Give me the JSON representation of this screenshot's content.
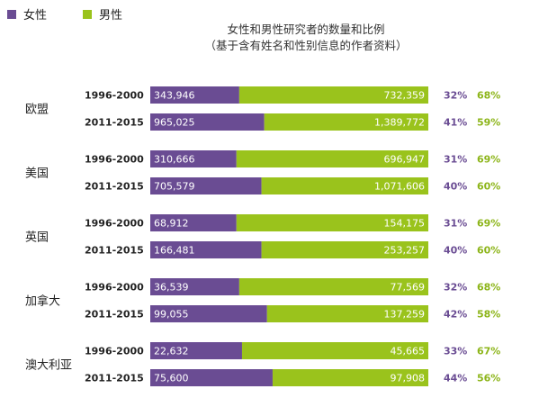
{
  "legend": [
    {
      "name": "女性",
      "color": "#6a4c93"
    },
    {
      "name": "男性",
      "color": "#9ac31c"
    }
  ],
  "chart_data": {
    "type": "bar",
    "orientation": "horizontal",
    "stacked": true,
    "normalized": true,
    "title": "女性和男性研究者的数量和比例",
    "subtitle": "（基于含有姓名和性别信息的作者资料）",
    "groups": [
      "欧盟",
      "美国",
      "英国",
      "加拿大",
      "澳大利亚"
    ],
    "periods": [
      "1996-2000",
      "2011-2015"
    ],
    "series": [
      {
        "name": "女性",
        "color": "#6a4c93"
      },
      {
        "name": "男性",
        "color": "#9ac31c"
      }
    ],
    "rows": [
      {
        "group": "欧盟",
        "period": "1996-2000",
        "female": "343,946",
        "male": "732,359",
        "female_pct": 32,
        "male_pct": 68
      },
      {
        "group": "欧盟",
        "period": "2011-2015",
        "female": "965,025",
        "male": "1,389,772",
        "female_pct": 41,
        "male_pct": 59
      },
      {
        "group": "美国",
        "period": "1996-2000",
        "female": "310,666",
        "male": "696,947",
        "female_pct": 31,
        "male_pct": 69
      },
      {
        "group": "美国",
        "period": "2011-2015",
        "female": "705,579",
        "male": "1,071,606",
        "female_pct": 40,
        "male_pct": 60
      },
      {
        "group": "英国",
        "period": "1996-2000",
        "female": "68,912",
        "male": "154,175",
        "female_pct": 31,
        "male_pct": 69
      },
      {
        "group": "英国",
        "period": "2011-2015",
        "female": "166,481",
        "male": "253,257",
        "female_pct": 40,
        "male_pct": 60
      },
      {
        "group": "加拿大",
        "period": "1996-2000",
        "female": "36,539",
        "male": "77,569",
        "female_pct": 32,
        "male_pct": 68
      },
      {
        "group": "加拿大",
        "period": "2011-2015",
        "female": "99,055",
        "male": "137,259",
        "female_pct": 42,
        "male_pct": 58
      },
      {
        "group": "澳大利亚",
        "period": "1996-2000",
        "female": "22,632",
        "male": "45,665",
        "female_pct": 33,
        "male_pct": 67
      },
      {
        "group": "澳大利亚",
        "period": "2011-2015",
        "female": "75,600",
        "male": "97,908",
        "female_pct": 44,
        "male_pct": 56
      }
    ]
  }
}
